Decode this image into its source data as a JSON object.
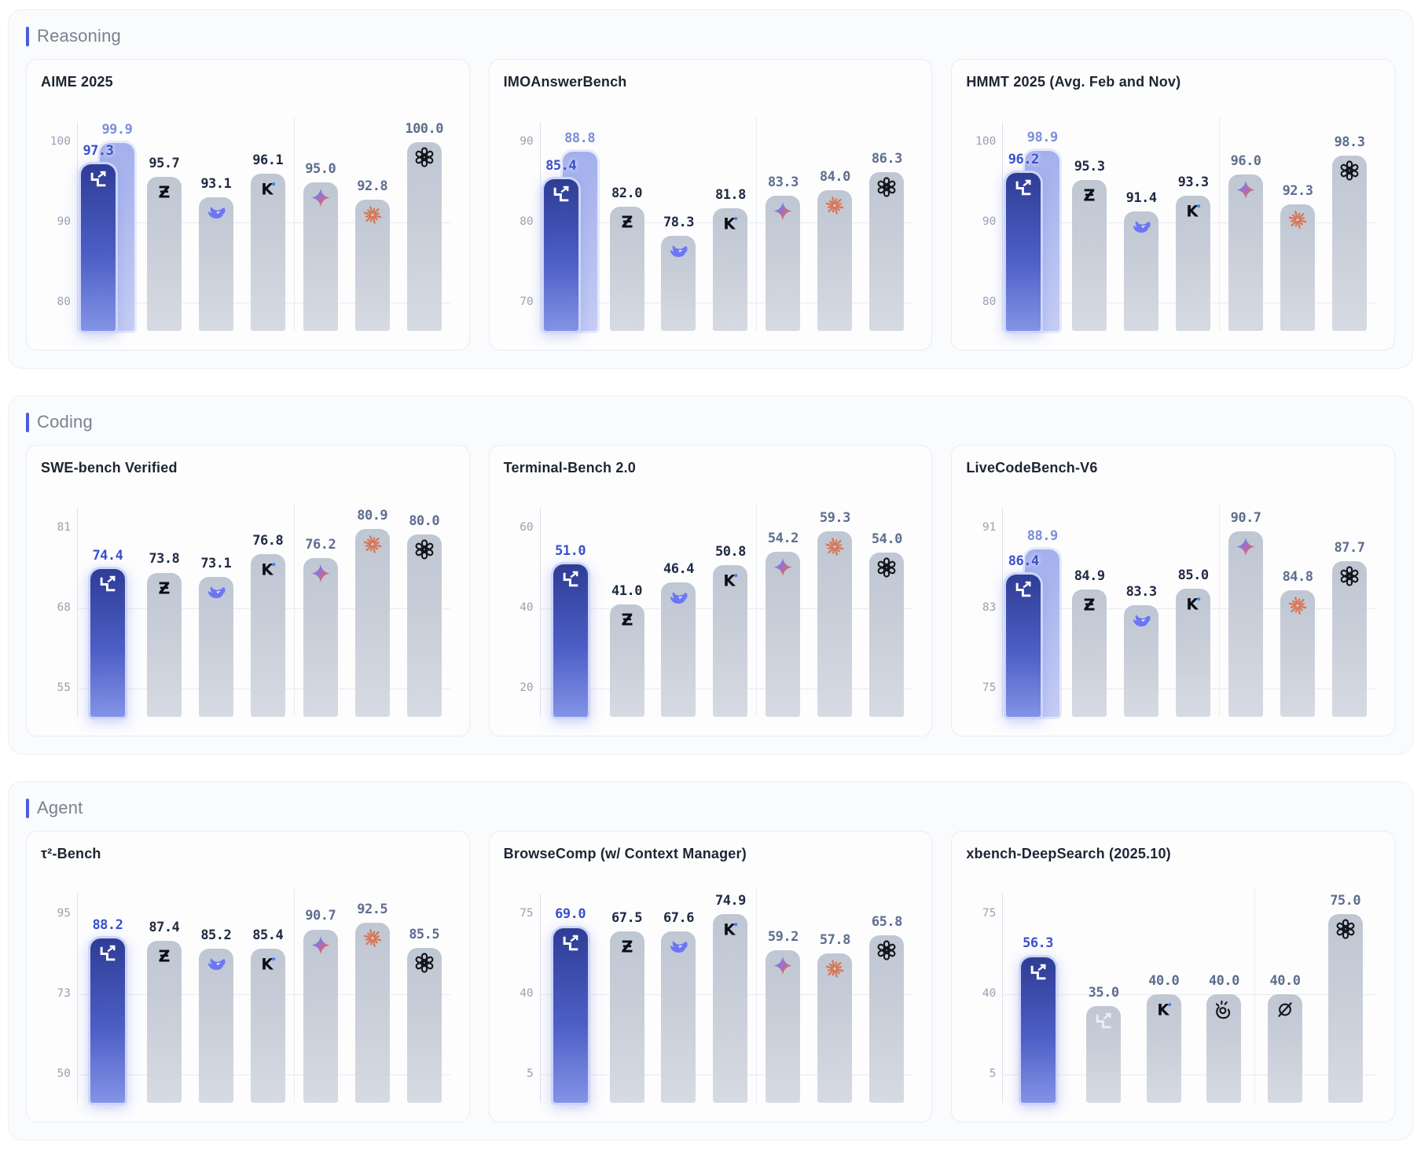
{
  "sections": [
    {
      "label": "Reasoning",
      "chart_indexes": [
        0,
        1,
        2
      ]
    },
    {
      "label": "Coding",
      "chart_indexes": [
        3,
        4,
        5
      ]
    },
    {
      "label": "Agent",
      "chart_indexes": [
        6,
        7,
        8
      ]
    }
  ],
  "colors": {
    "accent_blue": "#3a50cc",
    "secondary_label_blue": "#7b8ed8",
    "dark_label": "#202b44",
    "muted_label": "#5e6e8d",
    "featured_bar_top": "#2e3d95",
    "featured_bar_bottom": "#8393e6",
    "secondary_bar": "#a3b0ec",
    "gray_bar_top": "#bfc7d3",
    "gray_bar_bottom": "#d6dae3",
    "claude_orange": "#d97757",
    "deepseek_blue": "#6b76f7",
    "kimi_dot_blue": "#3b82f6",
    "section_accent_bar": "#4a5de0",
    "section_label_gray": "#78828f"
  },
  "chart_data": [
    {
      "type": "bar",
      "section": "Reasoning",
      "title": "AIME 2025",
      "ylim": [
        80,
        100
      ],
      "yticks": [
        "100",
        "90",
        "80"
      ],
      "separator_after": 4,
      "bars": [
        {
          "icon": "featured-stairs-icon",
          "tone": "accent",
          "value": "97.3",
          "value2": "99.9"
        },
        {
          "icon": "z-ai-icon",
          "tone": "dark",
          "value": "95.7"
        },
        {
          "icon": "deepseek-whale-icon",
          "tone": "dark",
          "value": "93.1"
        },
        {
          "icon": "kimi-k-icon",
          "tone": "dark",
          "value": "96.1"
        },
        {
          "icon": "gemini-star-icon",
          "tone": "muted",
          "value": "95.0"
        },
        {
          "icon": "claude-starburst-icon",
          "tone": "muted",
          "value": "92.8"
        },
        {
          "icon": "openai-icon",
          "tone": "muted",
          "value": "100.0"
        }
      ]
    },
    {
      "type": "bar",
      "section": "Reasoning",
      "title": "IMOAnswerBench",
      "ylim": [
        70,
        90
      ],
      "yticks": [
        "90",
        "80",
        "70"
      ],
      "separator_after": 4,
      "bars": [
        {
          "icon": "featured-stairs-icon",
          "tone": "accent",
          "value": "85.4",
          "value2": "88.8"
        },
        {
          "icon": "z-ai-icon",
          "tone": "dark",
          "value": "82.0"
        },
        {
          "icon": "deepseek-whale-icon",
          "tone": "dark",
          "value": "78.3"
        },
        {
          "icon": "kimi-k-icon",
          "tone": "dark",
          "value": "81.8"
        },
        {
          "icon": "gemini-star-icon",
          "tone": "muted",
          "value": "83.3"
        },
        {
          "icon": "claude-starburst-icon",
          "tone": "muted",
          "value": "84.0"
        },
        {
          "icon": "openai-icon",
          "tone": "muted",
          "value": "86.3"
        }
      ]
    },
    {
      "type": "bar",
      "section": "Reasoning",
      "title": "HMMT 2025 (Avg. Feb and Nov)",
      "ylim": [
        80,
        100
      ],
      "yticks": [
        "100",
        "90",
        "80"
      ],
      "separator_after": 4,
      "bars": [
        {
          "icon": "featured-stairs-icon",
          "tone": "accent",
          "value": "96.2",
          "value2": "98.9"
        },
        {
          "icon": "z-ai-icon",
          "tone": "dark",
          "value": "95.3"
        },
        {
          "icon": "deepseek-whale-icon",
          "tone": "dark",
          "value": "91.4"
        },
        {
          "icon": "kimi-k-icon",
          "tone": "dark",
          "value": "93.3"
        },
        {
          "icon": "gemini-star-icon",
          "tone": "muted",
          "value": "96.0"
        },
        {
          "icon": "claude-starburst-icon",
          "tone": "muted",
          "value": "92.3"
        },
        {
          "icon": "openai-icon",
          "tone": "muted",
          "value": "98.3"
        }
      ]
    },
    {
      "type": "bar",
      "section": "Coding",
      "title": "SWE-bench Verified",
      "ylim": [
        55,
        81
      ],
      "yticks": [
        "81",
        "68",
        "55"
      ],
      "separator_after": 4,
      "bars": [
        {
          "icon": "featured-stairs-icon",
          "tone": "accent",
          "value": "74.4"
        },
        {
          "icon": "z-ai-icon",
          "tone": "dark",
          "value": "73.8"
        },
        {
          "icon": "deepseek-whale-icon",
          "tone": "dark",
          "value": "73.1"
        },
        {
          "icon": "kimi-k-icon",
          "tone": "dark",
          "value": "76.8"
        },
        {
          "icon": "gemini-star-icon",
          "tone": "muted",
          "value": "76.2"
        },
        {
          "icon": "claude-starburst-icon",
          "tone": "muted",
          "value": "80.9"
        },
        {
          "icon": "openai-icon",
          "tone": "muted",
          "value": "80.0"
        }
      ]
    },
    {
      "type": "bar",
      "section": "Coding",
      "title": "Terminal-Bench 2.0",
      "ylim": [
        20,
        60
      ],
      "yticks": [
        "60",
        "40",
        "20"
      ],
      "separator_after": 4,
      "bars": [
        {
          "icon": "featured-stairs-icon",
          "tone": "accent",
          "value": "51.0"
        },
        {
          "icon": "z-ai-icon",
          "tone": "dark",
          "value": "41.0"
        },
        {
          "icon": "deepseek-whale-icon",
          "tone": "dark",
          "value": "46.4"
        },
        {
          "icon": "kimi-k-icon",
          "tone": "dark",
          "value": "50.8"
        },
        {
          "icon": "gemini-star-icon",
          "tone": "muted",
          "value": "54.2"
        },
        {
          "icon": "claude-starburst-icon",
          "tone": "muted",
          "value": "59.3"
        },
        {
          "icon": "openai-icon",
          "tone": "muted",
          "value": "54.0"
        }
      ]
    },
    {
      "type": "bar",
      "section": "Coding",
      "title": "LiveCodeBench-V6",
      "ylim": [
        75,
        91
      ],
      "yticks": [
        "91",
        "83",
        "75"
      ],
      "separator_after": 4,
      "bars": [
        {
          "icon": "featured-stairs-icon",
          "tone": "accent",
          "value": "86.4",
          "value2": "88.9"
        },
        {
          "icon": "z-ai-icon",
          "tone": "dark",
          "value": "84.9"
        },
        {
          "icon": "deepseek-whale-icon",
          "tone": "dark",
          "value": "83.3"
        },
        {
          "icon": "kimi-k-icon",
          "tone": "dark",
          "value": "85.0"
        },
        {
          "icon": "gemini-star-icon",
          "tone": "muted",
          "value": "90.7"
        },
        {
          "icon": "claude-starburst-icon",
          "tone": "muted",
          "value": "84.8"
        },
        {
          "icon": "openai-icon",
          "tone": "muted",
          "value": "87.7"
        }
      ]
    },
    {
      "type": "bar",
      "section": "Agent",
      "title": "τ²-Bench",
      "ylim": [
        50,
        95
      ],
      "yticks": [
        "95",
        "73",
        "50"
      ],
      "separator_after": 4,
      "bars": [
        {
          "icon": "featured-stairs-icon",
          "tone": "accent",
          "value": "88.2"
        },
        {
          "icon": "z-ai-icon",
          "tone": "dark",
          "value": "87.4"
        },
        {
          "icon": "deepseek-whale-icon",
          "tone": "dark",
          "value": "85.2"
        },
        {
          "icon": "kimi-k-icon",
          "tone": "dark",
          "value": "85.4"
        },
        {
          "icon": "gemini-star-icon",
          "tone": "muted",
          "value": "90.7"
        },
        {
          "icon": "claude-starburst-icon",
          "tone": "muted",
          "value": "92.5"
        },
        {
          "icon": "openai-icon",
          "tone": "muted",
          "value": "85.5"
        }
      ]
    },
    {
      "type": "bar",
      "section": "Agent",
      "title": "BrowseComp (w/ Context Manager)",
      "ylim": [
        5,
        75
      ],
      "yticks": [
        "75",
        "40",
        "5"
      ],
      "separator_after": 4,
      "bars": [
        {
          "icon": "featured-stairs-icon",
          "tone": "accent",
          "value": "69.0"
        },
        {
          "icon": "z-ai-icon",
          "tone": "dark",
          "value": "67.5"
        },
        {
          "icon": "deepseek-whale-icon",
          "tone": "dark",
          "value": "67.6"
        },
        {
          "icon": "kimi-k-icon",
          "tone": "dark",
          "value": "74.9"
        },
        {
          "icon": "gemini-star-icon",
          "tone": "muted",
          "value": "59.2"
        },
        {
          "icon": "claude-starburst-icon",
          "tone": "muted",
          "value": "57.8"
        },
        {
          "icon": "openai-icon",
          "tone": "muted",
          "value": "65.8"
        }
      ]
    },
    {
      "type": "bar",
      "section": "Agent",
      "title": "xbench-DeepSearch (2025.10)",
      "ylim": [
        5,
        75
      ],
      "yticks": [
        "75",
        "40",
        "5"
      ],
      "separator_after": 4,
      "bars": [
        {
          "icon": "featured-stairs-icon",
          "tone": "accent",
          "value": "56.3"
        },
        {
          "icon": "gray-stairs-icon",
          "tone": "muted",
          "value": "35.0"
        },
        {
          "icon": "kimi-k-icon",
          "tone": "muted",
          "value": "40.0"
        },
        {
          "icon": "snap-hand-icon",
          "tone": "muted",
          "value": "40.0"
        },
        {
          "icon": "slash-circle-icon",
          "tone": "muted",
          "value": "40.0"
        },
        {
          "icon": "openai-icon",
          "tone": "muted",
          "value": "75.0"
        }
      ]
    }
  ]
}
